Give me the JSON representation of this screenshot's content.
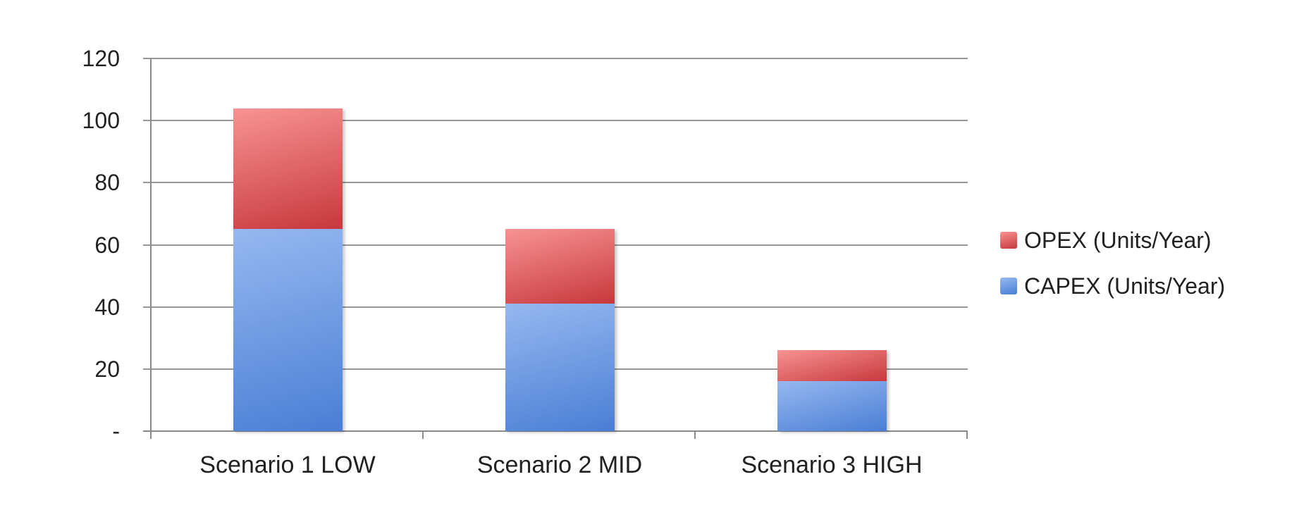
{
  "chart_data": {
    "type": "bar",
    "stacked": true,
    "title": "",
    "xlabel": "",
    "ylabel": "",
    "categories": [
      "Scenario 1 LOW",
      "Scenario 2 MID",
      "Scenario 3 HIGH"
    ],
    "series": [
      {
        "name": "CAPEX (Units/Year)",
        "values": [
          65,
          41,
          16
        ],
        "gradient_top": "#96B8F0",
        "gradient_bottom": "#4A7ED5"
      },
      {
        "name": "OPEX (Units/Year)",
        "values": [
          39,
          24,
          10
        ],
        "gradient_top": "#F89393",
        "gradient_bottom": "#C7383C"
      }
    ],
    "stack_totals": [
      104,
      65,
      26
    ],
    "ylim": [
      0,
      120
    ],
    "ytick_interval": 20,
    "yticks": [
      {
        "value": 0,
        "label": "-"
      },
      {
        "value": 20,
        "label": "20"
      },
      {
        "value": 40,
        "label": "40"
      },
      {
        "value": 60,
        "label": "60"
      },
      {
        "value": 80,
        "label": "80"
      },
      {
        "value": 100,
        "label": "100"
      },
      {
        "value": 120,
        "label": "120"
      }
    ],
    "grid": true,
    "legend": {
      "position": "right",
      "entries": [
        {
          "label": "OPEX (Units/Year)",
          "series_index": 1
        },
        {
          "label": "CAPEX (Units/Year)",
          "series_index": 0
        }
      ]
    },
    "colors": {
      "gridline": "#989898",
      "axis": "#8A8A8A",
      "text": "#212121",
      "background": "#FFFFFF"
    }
  }
}
